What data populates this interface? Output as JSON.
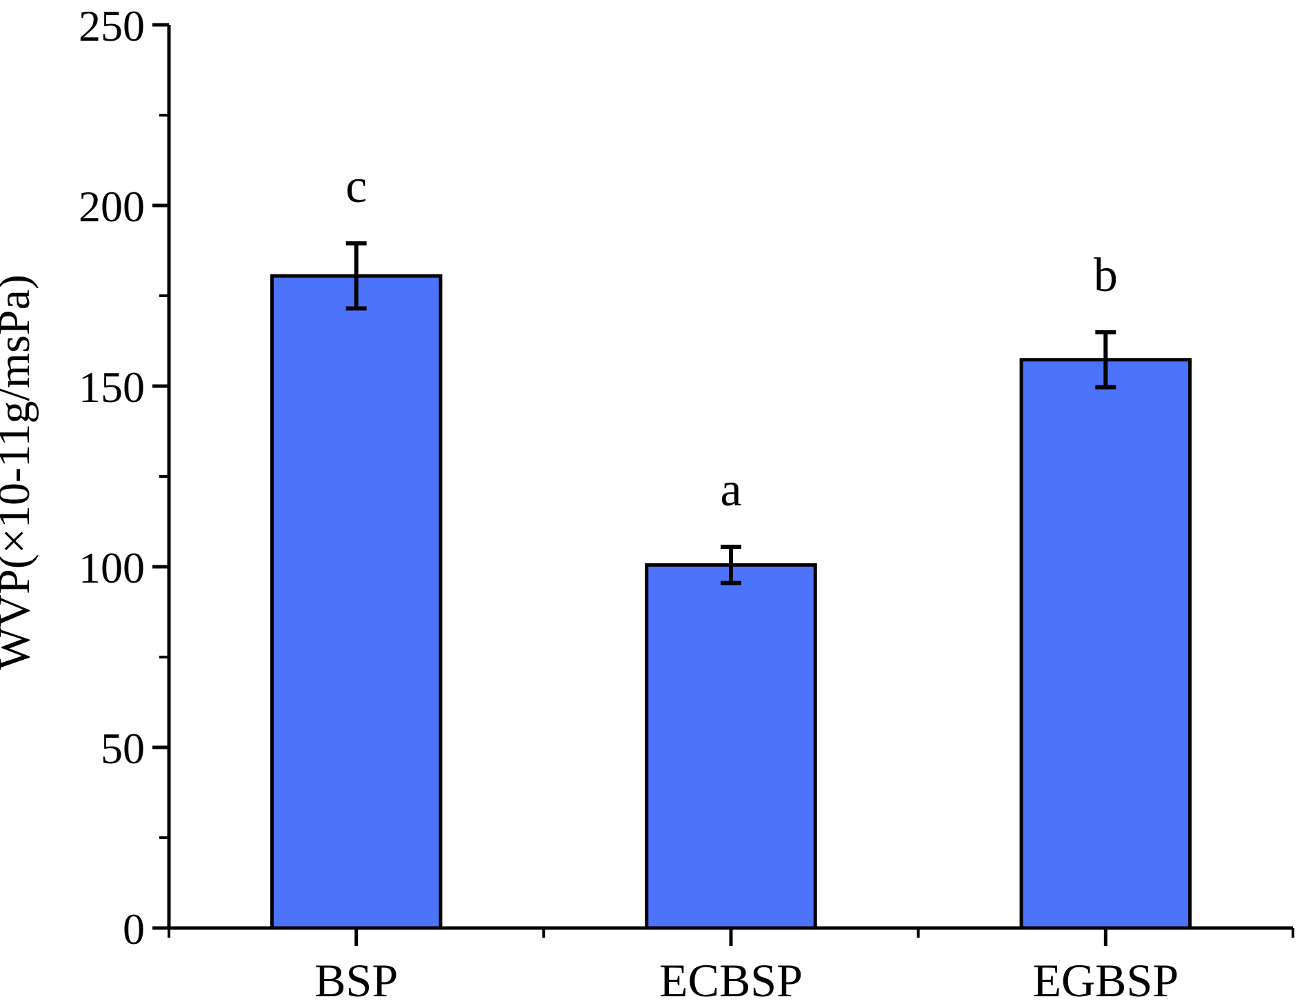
{
  "figure": {
    "background_color": "#ffffff"
  },
  "chart_data": {
    "type": "bar",
    "title": "",
    "categories": [
      "BSP",
      "ECBSP",
      "EGBSP"
    ],
    "values": [
      180.5,
      100.5,
      157.3
    ],
    "error_bars": [
      9,
      5,
      7.6
    ],
    "sig_letters": [
      "c",
      "a",
      "b"
    ],
    "xlabel": "",
    "ylabel": "WVP(×10-11g/msPa)",
    "ylim": [
      0,
      250
    ],
    "yticks": [
      0,
      50,
      100,
      150,
      200,
      250
    ],
    "ytick_step": 50,
    "ytick_minor_step": 25,
    "grid": false,
    "legend": null,
    "bar_color": "#4c73fa",
    "bar_edge_color": "#000000",
    "axis_color": "#000000",
    "text_color": "#000000"
  }
}
